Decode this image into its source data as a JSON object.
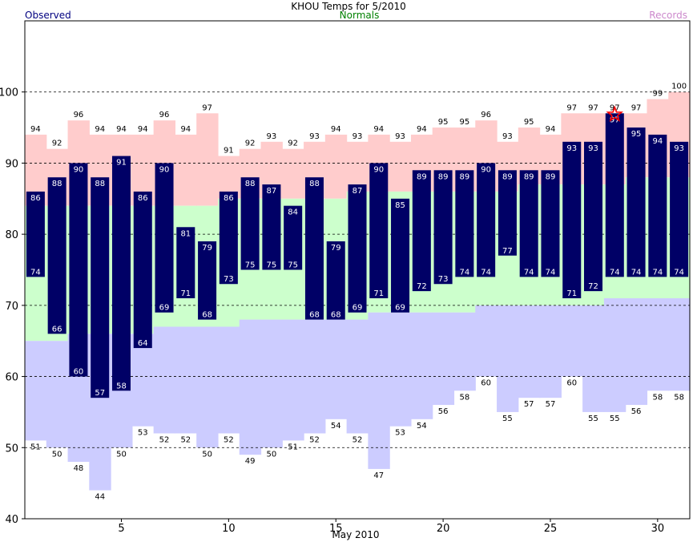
{
  "header": {
    "title": "KHOU Temps for 5/2010",
    "observed_label": "Observed",
    "normals_label": "Normals",
    "records_label": "Records"
  },
  "colors": {
    "observed_bar": "#000066",
    "normals_band": "#ccffcc",
    "record_high_band": "#ffcccc",
    "record_low_band": "#ccccff",
    "record_star": "#ff0000"
  },
  "chart_data": {
    "type": "bar",
    "title": "KHOU Temps for 5/2010",
    "xlabel": "May 2010",
    "ylabel": "",
    "xlim": [
      1,
      31
    ],
    "ylim": [
      40,
      110
    ],
    "x_ticks": [
      "5",
      "10",
      "15",
      "20",
      "25",
      "30"
    ],
    "y_ticks": [
      "40",
      "50",
      "60",
      "70",
      "80",
      "90",
      "100"
    ],
    "grid": "dashed horizontal",
    "legend": [
      "Observed",
      "Normals",
      "Records"
    ],
    "days": [
      1,
      2,
      3,
      4,
      5,
      6,
      7,
      8,
      9,
      10,
      11,
      12,
      13,
      14,
      15,
      16,
      17,
      18,
      19,
      20,
      21,
      22,
      23,
      24,
      25,
      26,
      27,
      28,
      29,
      30,
      31
    ],
    "series": [
      {
        "name": "Observed high",
        "values": [
          86,
          88,
          90,
          88,
          91,
          86,
          90,
          81,
          79,
          86,
          88,
          87,
          84,
          88,
          79,
          87,
          90,
          85,
          89,
          89,
          89,
          90,
          89,
          89,
          89,
          93,
          93,
          97,
          95,
          94,
          93
        ]
      },
      {
        "name": "Observed low",
        "values": [
          74,
          66,
          60,
          57,
          58,
          64,
          69,
          71,
          68,
          73,
          75,
          75,
          75,
          68,
          68,
          69,
          71,
          69,
          72,
          73,
          74,
          74,
          77,
          74,
          74,
          71,
          72,
          74,
          74,
          74,
          74
        ]
      },
      {
        "name": "Record high",
        "values": [
          94,
          92,
          96,
          94,
          94,
          94,
          96,
          94,
          97,
          91,
          92,
          93,
          92,
          93,
          94,
          93,
          94,
          93,
          94,
          95,
          95,
          96,
          93,
          95,
          94,
          97,
          97,
          97,
          97,
          99,
          100
        ]
      },
      {
        "name": "Record low",
        "values": [
          51,
          50,
          48,
          44,
          50,
          53,
          52,
          52,
          50,
          52,
          49,
          50,
          51,
          52,
          54,
          52,
          47,
          53,
          54,
          56,
          58,
          60,
          55,
          57,
          57,
          60,
          55,
          55,
          56,
          58,
          58
        ]
      },
      {
        "name": "Normal high",
        "values": [
          84,
          84,
          84,
          84,
          84,
          84,
          84,
          84,
          84,
          85,
          85,
          85,
          85,
          85,
          85,
          86,
          86,
          86,
          86,
          86,
          86,
          86,
          86,
          87,
          87,
          87,
          87,
          87,
          88,
          88,
          88
        ]
      },
      {
        "name": "Normal low",
        "values": [
          65,
          65,
          66,
          66,
          66,
          66,
          67,
          67,
          67,
          67,
          68,
          68,
          68,
          68,
          68,
          68,
          69,
          69,
          69,
          69,
          69,
          70,
          70,
          70,
          70,
          70,
          70,
          71,
          71,
          71,
          71
        ]
      }
    ],
    "record_set_days": [
      28
    ]
  }
}
